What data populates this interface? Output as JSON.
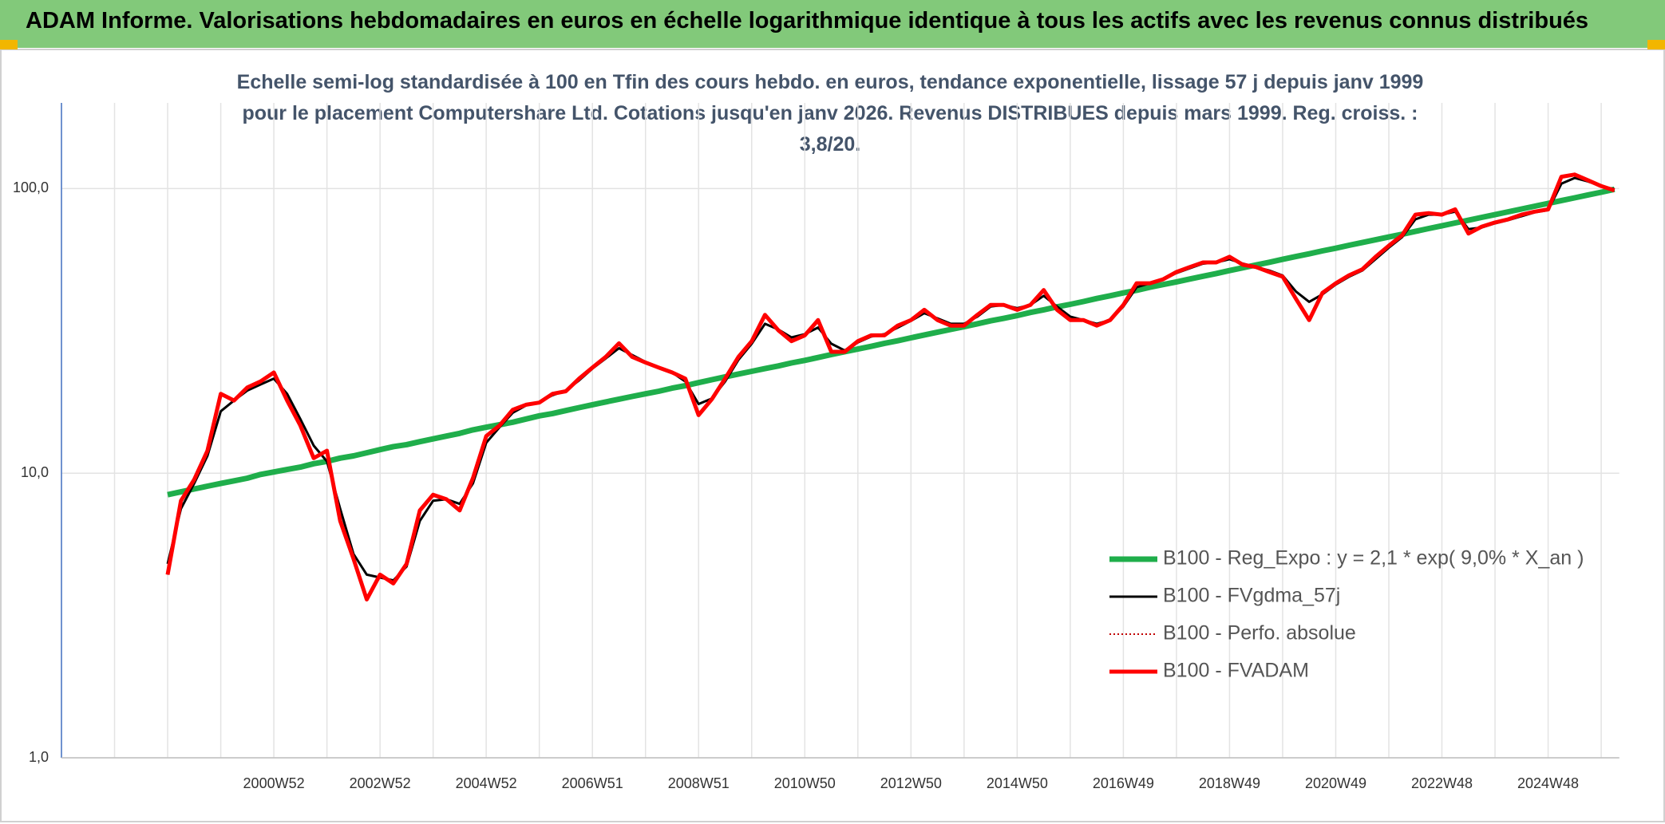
{
  "chart_data": {
    "type": "line",
    "title": "ADAM Informe. Valorisations hebdomadaires en euros en échelle logarithmique identique à tous les actifs avec les revenus connus distribués",
    "subtitle": "Echelle semi-log standardisée à 100 en Tfin des cours hebdo. en euros, tendance exponentielle, lissage 57 j depuis janv 1999 pour le placement Computershare Ltd. Cotations jusqu'en janv 2026. Revenus DISTRIBUES depuis mars 1999. Reg. croiss. : 3,8/20.",
    "log_scale": true,
    "grid": true,
    "ylim": [
      1,
      200
    ],
    "yticks": [
      {
        "value": 1,
        "label": "1,0"
      },
      {
        "value": 10,
        "label": "10,0"
      },
      {
        "value": 100,
        "label": "100,0"
      }
    ],
    "categories": [
      null,
      null,
      null,
      null,
      null,
      null,
      null,
      null,
      null,
      null,
      null,
      null,
      null,
      null,
      null,
      null,
      "2000W52",
      null,
      null,
      null,
      null,
      null,
      null,
      null,
      "2002W52",
      null,
      null,
      null,
      null,
      null,
      null,
      null,
      "2004W52",
      null,
      null,
      null,
      null,
      null,
      null,
      null,
      "2006W51",
      null,
      null,
      null,
      null,
      null,
      null,
      null,
      "2008W51",
      null,
      null,
      null,
      null,
      null,
      null,
      null,
      "2010W50",
      null,
      null,
      null,
      null,
      null,
      null,
      null,
      "2012W50",
      null,
      null,
      null,
      null,
      null,
      null,
      null,
      "2014W50",
      null,
      null,
      null,
      null,
      null,
      null,
      null,
      "2016W49",
      null,
      null,
      null,
      null,
      null,
      null,
      null,
      "2018W49",
      null,
      null,
      null,
      null,
      null,
      null,
      null,
      "2020W49",
      null,
      null,
      null,
      null,
      null,
      null,
      null,
      "2022W48",
      null,
      null,
      null,
      null,
      null,
      null,
      null,
      "2024W48",
      null,
      null,
      null,
      null,
      null
    ],
    "series": [
      {
        "name": "B100 - Reg_Expo : y = 2,1 * exp( 9,0% *  X_an )",
        "color": "#1fae4b",
        "width": 7,
        "dash": "solid",
        "values": [
          null,
          null,
          null,
          null,
          null,
          null,
          null,
          null,
          8.4,
          8.6,
          8.8,
          9.0,
          9.2,
          9.4,
          9.6,
          9.9,
          10.1,
          10.3,
          10.5,
          10.8,
          11.0,
          11.3,
          11.5,
          11.8,
          12.1,
          12.4,
          12.6,
          12.9,
          13.2,
          13.5,
          13.8,
          14.2,
          14.5,
          14.8,
          15.1,
          15.5,
          15.9,
          16.2,
          16.6,
          17.0,
          17.4,
          17.8,
          18.2,
          18.6,
          19.0,
          19.4,
          19.9,
          20.3,
          20.8,
          21.3,
          21.8,
          22.3,
          22.8,
          23.3,
          23.8,
          24.4,
          24.9,
          25.5,
          26.1,
          26.7,
          27.3,
          27.9,
          28.6,
          29.2,
          29.9,
          30.6,
          31.3,
          32.0,
          32.7,
          33.5,
          34.3,
          35.0,
          35.8,
          36.7,
          37.5,
          38.4,
          39.2,
          40.1,
          41.1,
          42.0,
          43.0,
          43.9,
          45.0,
          46.0,
          47.0,
          48.1,
          49.2,
          50.3,
          51.5,
          52.7,
          53.9,
          55.1,
          56.4,
          57.7,
          59.0,
          60.4,
          61.7,
          63.2,
          64.6,
          66.1,
          67.6,
          69.1,
          70.7,
          72.4,
          74.0,
          75.7,
          77.4,
          79.2,
          81.0,
          82.9,
          84.8,
          86.7,
          88.7,
          90.8,
          92.8,
          95.0,
          97.1,
          99.4
        ]
      },
      {
        "name": "B100 - FVgdma_57j",
        "color": "#000000",
        "width": 3,
        "dash": "solid",
        "values": [
          null,
          null,
          null,
          null,
          null,
          null,
          null,
          null,
          4.8,
          7.5,
          9.2,
          11.5,
          16.5,
          18.0,
          19.5,
          20.5,
          21.5,
          19.0,
          15.5,
          12.5,
          11.0,
          7.5,
          5.2,
          4.4,
          4.3,
          4.2,
          4.7,
          6.8,
          8.0,
          8.1,
          7.8,
          9.2,
          12.8,
          14.5,
          16.3,
          17.3,
          17.8,
          18.8,
          19.5,
          21.2,
          23.3,
          25.3,
          27.5,
          26.0,
          24.6,
          23.6,
          22.6,
          21.0,
          17.5,
          18.3,
          21.0,
          25.0,
          28.5,
          33.5,
          32.0,
          30.0,
          30.8,
          32.5,
          28.5,
          27.0,
          28.8,
          30.2,
          30.8,
          32.5,
          34.3,
          36.5,
          35.0,
          33.5,
          33.5,
          35.5,
          38.5,
          39.0,
          38.0,
          39.0,
          42.0,
          38.5,
          35.5,
          34.5,
          33.5,
          34.5,
          38.5,
          45.0,
          46.5,
          48.0,
          50.5,
          52.5,
          54.5,
          55.0,
          56.5,
          54.5,
          53.0,
          51.5,
          49.5,
          43.5,
          40.0,
          42.5,
          46.0,
          49.0,
          51.5,
          56.5,
          62.0,
          67.5,
          78.0,
          81.0,
          81.0,
          83.0,
          72.0,
          73.0,
          75.5,
          77.5,
          80.0,
          82.5,
          84.0,
          104,
          109,
          106,
          102,
          99.5
        ]
      },
      {
        "name": "B100 - Perfo. absolue",
        "color": "#c00000",
        "width": 2,
        "dash": "dotted",
        "values": [
          null,
          null,
          null,
          null,
          null,
          null,
          null,
          null,
          4.4,
          8.0,
          9.5,
          12.0,
          19.0,
          18.0,
          20.0,
          21.0,
          22.6,
          18.0,
          14.7,
          11.3,
          12.0,
          6.8,
          5.0,
          3.6,
          4.4,
          4.1,
          4.8,
          7.4,
          8.4,
          8.1,
          7.4,
          9.6,
          13.5,
          14.7,
          16.7,
          17.4,
          17.7,
          19.0,
          19.4,
          21.5,
          23.5,
          25.6,
          28.6,
          25.6,
          24.5,
          23.5,
          22.6,
          21.5,
          16.0,
          18.2,
          21.5,
          25.6,
          29.1,
          36.0,
          31.8,
          29.1,
          30.5,
          34.5,
          26.7,
          26.7,
          29.1,
          30.5,
          30.5,
          33.0,
          34.5,
          37.5,
          34.5,
          33.0,
          33.0,
          36.0,
          39.0,
          39.0,
          37.5,
          39.0,
          44.0,
          37.5,
          34.5,
          34.5,
          33.0,
          34.5,
          39.0,
          46.5,
          46.5,
          48.0,
          50.9,
          53.0,
          55.0,
          55.0,
          57.6,
          54.0,
          53.0,
          50.9,
          49.0,
          41.0,
          34.5,
          43.0,
          46.5,
          49.6,
          52.0,
          57.6,
          63.0,
          68.5,
          81.0,
          82.0,
          81.0,
          84.5,
          69.5,
          73.5,
          76.0,
          78.0,
          81.0,
          83.0,
          84.5,
          110,
          112,
          107,
          102,
          98.5
        ]
      },
      {
        "name": "B100 - FVADAM",
        "color": "#ff0000",
        "width": 5,
        "dash": "solid",
        "values": [
          null,
          null,
          null,
          null,
          null,
          null,
          null,
          null,
          4.4,
          8.0,
          9.5,
          12.0,
          19.0,
          18.0,
          20.0,
          21.0,
          22.6,
          18.0,
          14.7,
          11.3,
          12.0,
          6.8,
          5.0,
          3.6,
          4.4,
          4.1,
          4.8,
          7.4,
          8.4,
          8.1,
          7.4,
          9.6,
          13.5,
          14.7,
          16.7,
          17.4,
          17.7,
          19.0,
          19.4,
          21.5,
          23.5,
          25.6,
          28.6,
          25.6,
          24.5,
          23.5,
          22.6,
          21.5,
          16.0,
          18.2,
          21.5,
          25.6,
          29.1,
          36.0,
          31.8,
          29.1,
          30.5,
          34.5,
          26.7,
          26.7,
          29.1,
          30.5,
          30.5,
          33.0,
          34.5,
          37.5,
          34.5,
          33.0,
          33.0,
          36.0,
          39.0,
          39.0,
          37.5,
          39.0,
          44.0,
          37.5,
          34.5,
          34.5,
          33.0,
          34.5,
          39.0,
          46.5,
          46.5,
          48.0,
          50.9,
          53.0,
          55.0,
          55.0,
          57.6,
          54.0,
          53.0,
          50.9,
          49.0,
          41.0,
          34.5,
          43.0,
          46.5,
          49.6,
          52.0,
          57.6,
          63.0,
          68.5,
          81.0,
          82.0,
          81.0,
          84.5,
          69.5,
          73.5,
          76.0,
          78.0,
          81.0,
          83.0,
          84.5,
          110,
          112,
          107,
          102,
          98.5
        ]
      }
    ]
  }
}
